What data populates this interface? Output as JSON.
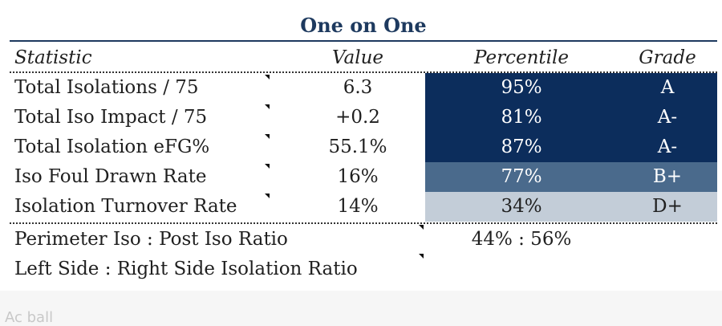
{
  "title": "One on One",
  "headers": {
    "statistic": "Statistic",
    "value": "Value",
    "percentile": "Percentile",
    "grade": "Grade"
  },
  "rows": [
    {
      "statistic": "Total Isolations / 75",
      "value": "6.3",
      "percentile": "95%",
      "grade": "A",
      "cell_color": "#0c2d5c",
      "text_color": "#ffffff"
    },
    {
      "statistic": "Total Iso Impact / 75",
      "value": "+0.2",
      "percentile": "81%",
      "grade": "A-",
      "cell_color": "#0c2d5c",
      "text_color": "#ffffff"
    },
    {
      "statistic": "Total Isolation eFG%",
      "value": "55.1%",
      "percentile": "87%",
      "grade": "A-",
      "cell_color": "#0c2d5c",
      "text_color": "#ffffff"
    },
    {
      "statistic": "Iso Foul Drawn Rate",
      "value": "16%",
      "percentile": "77%",
      "grade": "B+",
      "cell_color": "#4a6a8c",
      "text_color": "#ffffff"
    },
    {
      "statistic": "Isolation Turnover Rate",
      "value": "14%",
      "percentile": "34%",
      "grade": "D+",
      "cell_color": "#c3cdd8",
      "text_color": "#1f1f1f"
    }
  ],
  "ratios": [
    {
      "label": "Perimeter Iso : Post Iso Ratio",
      "value": "44% : 56%"
    },
    {
      "label": "Left Side : Right Side Isolation Ratio",
      "value": ""
    }
  ],
  "footer_text": "Ac ball"
}
